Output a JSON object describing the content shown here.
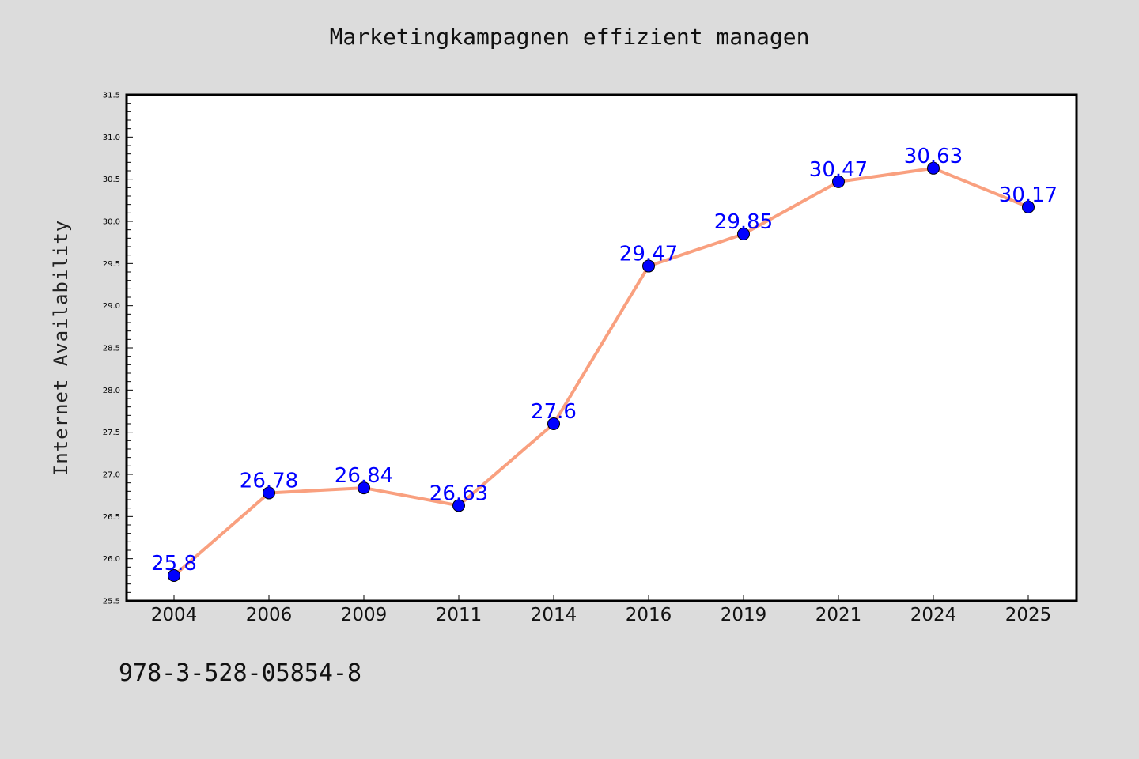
{
  "chart_data": {
    "type": "line",
    "title": "Marketingkampagnen effizient managen",
    "xlabel": "",
    "ylabel": "Internet Availability",
    "categories": [
      "2004",
      "2006",
      "2009",
      "2011",
      "2014",
      "2016",
      "2019",
      "2021",
      "2024",
      "2025"
    ],
    "values": [
      25.8,
      26.78,
      26.84,
      26.63,
      27.6,
      29.47,
      29.85,
      30.47,
      30.63,
      30.17
    ],
    "data_labels": [
      "25.8",
      "26.78",
      "26.84",
      "26.63",
      "27.6",
      "29.47",
      "29.85",
      "30.47",
      "30.63",
      "30.17"
    ],
    "ylim": [
      25.5,
      31.5
    ],
    "yticks": [
      "25.5",
      "26.0",
      "26.5",
      "27.0",
      "27.5",
      "28.0",
      "28.5",
      "29.0",
      "29.5",
      "30.0",
      "30.5",
      "31.0",
      "31.5"
    ],
    "line_color": "#f9a07f",
    "marker_color": "#0000ff",
    "label_color": "#0000ff",
    "grid": false,
    "legend": "none"
  },
  "footnote": "978-3-528-05854-8",
  "colors": {
    "background": "#dcdcdc",
    "plot_background": "#ffffff",
    "axis": "#000000"
  }
}
